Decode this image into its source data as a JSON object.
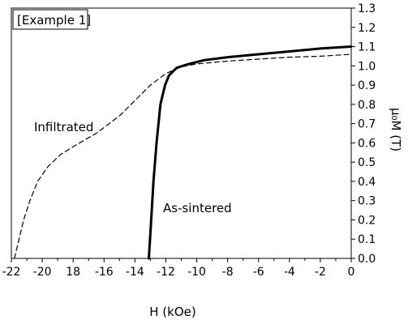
{
  "chart_data": {
    "type": "line",
    "title": "",
    "annotation_box": "[Example 1]",
    "xlabel": "H (kOe)",
    "ylabel": "μ₀M (T)",
    "xlim": [
      -22,
      0
    ],
    "ylim": [
      0,
      1.3
    ],
    "x_ticks": [
      -22,
      -20,
      -18,
      -16,
      -14,
      -12,
      -10,
      -8,
      -6,
      -4,
      -2,
      0
    ],
    "x_tick_labels": [
      "-22",
      "-20",
      "18",
      "-16",
      "-14",
      "-12",
      "-10",
      "-8",
      "-6",
      "-4",
      "-2",
      "0"
    ],
    "y_ticks": [
      0,
      0.1,
      0.2,
      0.3,
      0.4,
      0.5,
      0.6,
      0.7,
      0.8,
      0.9,
      1.0,
      1.1,
      1.2,
      1.3
    ],
    "y_tick_labels": [
      "0.0",
      "0.1",
      "0.2",
      "0.3",
      "0.4",
      "0.5",
      "0.6",
      "0.7",
      "0.8",
      "0.9",
      "1.0",
      "1.1",
      "1.2",
      "1.3"
    ],
    "y_axis_side": "right",
    "grid": false,
    "series": [
      {
        "name": "Infiltrated",
        "style": "dashed",
        "color": "#000000",
        "points": [
          [
            -21.8,
            0.0
          ],
          [
            -21.5,
            0.1
          ],
          [
            -21.2,
            0.2
          ],
          [
            -20.8,
            0.3
          ],
          [
            -20.3,
            0.4
          ],
          [
            -19.6,
            0.48
          ],
          [
            -18.8,
            0.54
          ],
          [
            -17.8,
            0.59
          ],
          [
            -16.5,
            0.65
          ],
          [
            -15.0,
            0.74
          ],
          [
            -14.0,
            0.82
          ],
          [
            -13.0,
            0.9
          ],
          [
            -12.0,
            0.96
          ],
          [
            -11.0,
            0.995
          ],
          [
            -10.0,
            1.01
          ],
          [
            -8.0,
            1.025
          ],
          [
            -6.0,
            1.035
          ],
          [
            -4.0,
            1.045
          ],
          [
            -2.0,
            1.05
          ],
          [
            0.0,
            1.06
          ]
        ]
      },
      {
        "name": "As-sintered",
        "style": "solid",
        "color": "#000000",
        "points": [
          [
            -13.1,
            0.0
          ],
          [
            -12.95,
            0.2
          ],
          [
            -12.8,
            0.4
          ],
          [
            -12.6,
            0.6
          ],
          [
            -12.35,
            0.8
          ],
          [
            -12.05,
            0.9
          ],
          [
            -11.8,
            0.95
          ],
          [
            -11.3,
            0.99
          ],
          [
            -10.5,
            1.01
          ],
          [
            -9.5,
            1.03
          ],
          [
            -8.0,
            1.045
          ],
          [
            -6.0,
            1.06
          ],
          [
            -4.0,
            1.075
          ],
          [
            -2.0,
            1.09
          ],
          [
            0.0,
            1.1
          ]
        ]
      }
    ],
    "labels": {
      "infiltrated": "Infiltrated",
      "as_sintered": "As-sintered"
    }
  }
}
